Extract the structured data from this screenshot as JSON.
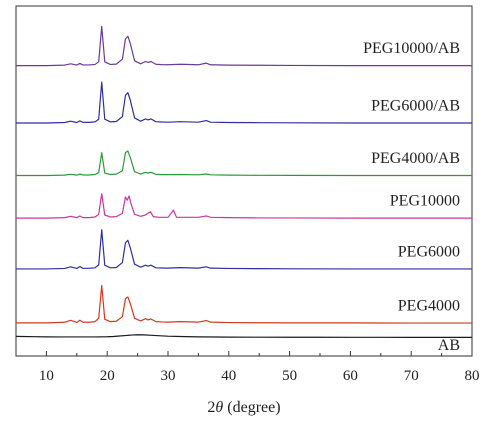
{
  "chart_data": {
    "type": "line",
    "title": "",
    "xlabel_italic": "θ",
    "xlabel_prefix": "2",
    "xlabel_suffix": " (degree)",
    "ylabel": "",
    "xlim": [
      5,
      80
    ],
    "x_ticks": [
      "10",
      "20",
      "30",
      "40",
      "50",
      "60",
      "70",
      "80"
    ],
    "grid": false,
    "legend": "inline labels at right",
    "series": [
      {
        "name": "AB",
        "color": "#1a1a1a",
        "offset": 0,
        "x": [
          5,
          6,
          8,
          10,
          12,
          14,
          16,
          18,
          20,
          21,
          22,
          23,
          24,
          25,
          26,
          27,
          28,
          30,
          32,
          35,
          38,
          40,
          45,
          50,
          55,
          60,
          70,
          80
        ],
        "y": [
          0.5,
          0.45,
          0.4,
          0.35,
          0.33,
          0.32,
          0.32,
          0.33,
          0.38,
          0.45,
          0.6,
          0.75,
          0.9,
          1.0,
          0.95,
          0.85,
          0.75,
          0.55,
          0.45,
          0.35,
          0.3,
          0.27,
          0.25,
          0.23,
          0.22,
          0.21,
          0.2,
          0.2
        ]
      },
      {
        "name": "PEG4000",
        "color": "#d03a1f",
        "offset": 4.5,
        "x": [
          5,
          10,
          13,
          14,
          15,
          15.5,
          16,
          17,
          18,
          18.6,
          19.1,
          19.6,
          20.5,
          21.5,
          22.5,
          23.0,
          23.4,
          23.8,
          24.5,
          25.5,
          26.3,
          26.7,
          27.2,
          28,
          29,
          30,
          32,
          35,
          36.3,
          37,
          40,
          45,
          50,
          60,
          70,
          80
        ],
        "y": [
          0.1,
          0.1,
          0.3,
          0.9,
          0.25,
          0.9,
          0.3,
          0.3,
          0.5,
          1.5,
          11.5,
          1.2,
          0.5,
          0.6,
          2.0,
          7.5,
          8.0,
          6.0,
          1.5,
          0.7,
          1.4,
          1.0,
          1.3,
          0.5,
          0.4,
          0.35,
          0.5,
          0.35,
          0.8,
          0.35,
          0.2,
          0.15,
          0.12,
          0.1,
          0.05,
          0.05
        ]
      },
      {
        "name": "PEG6000",
        "color": "#2f2fa0",
        "offset": 21,
        "x": [
          5,
          10,
          13,
          14,
          15,
          15.5,
          16,
          17,
          18,
          18.6,
          19.1,
          19.6,
          20.5,
          21.5,
          22.5,
          23.0,
          23.4,
          23.8,
          24.5,
          25.5,
          26.3,
          26.7,
          27.2,
          28,
          29,
          30,
          32,
          35,
          36.3,
          37,
          40,
          45,
          50,
          60,
          70,
          80
        ],
        "y": [
          0.05,
          0.05,
          0.2,
          0.7,
          0.2,
          0.8,
          0.25,
          0.25,
          0.4,
          1.3,
          12.0,
          1.2,
          0.4,
          0.5,
          2.0,
          8.0,
          8.8,
          6.5,
          1.5,
          0.6,
          1.2,
          0.9,
          1.2,
          0.4,
          0.35,
          0.3,
          0.45,
          0.3,
          0.7,
          0.3,
          0.2,
          0.15,
          0.1,
          0.05,
          0.05,
          0.05
        ]
      },
      {
        "name": "PEG10000",
        "color": "#c8379f",
        "offset": 36.5,
        "x": [
          5,
          10,
          13,
          14,
          15,
          15.5,
          16,
          17,
          18,
          18.6,
          19.1,
          19.6,
          20.5,
          21.5,
          22.5,
          23.0,
          23.3,
          23.6,
          23.9,
          24.5,
          25.5,
          26.3,
          27.1,
          27.6,
          28.5,
          30,
          30.9,
          31.4,
          32.5,
          35,
          36.3,
          37,
          40,
          45,
          50,
          60,
          70,
          80
        ],
        "y": [
          0.05,
          0.05,
          0.2,
          0.6,
          0.2,
          0.7,
          0.2,
          0.2,
          0.4,
          1.2,
          7.5,
          1.0,
          0.4,
          0.5,
          1.5,
          6.5,
          5.5,
          6.8,
          4.5,
          1.2,
          0.6,
          1.0,
          2.0,
          0.5,
          0.3,
          0.3,
          2.5,
          0.3,
          0.3,
          0.3,
          0.7,
          0.3,
          0.2,
          0.1,
          0.1,
          0.05,
          0.05,
          0.05
        ]
      },
      {
        "name": "PEG4000/AB",
        "color": "#2c9a3a",
        "offset": 49.5,
        "x": [
          5,
          10,
          13,
          14,
          15,
          15.5,
          16,
          17,
          18,
          18.6,
          19.1,
          19.6,
          20.5,
          21.5,
          22.5,
          23.0,
          23.4,
          23.8,
          24.5,
          25.5,
          26.3,
          26.7,
          27.2,
          28,
          29,
          30,
          32,
          35,
          36.3,
          37,
          40,
          45,
          50,
          60,
          70,
          80
        ],
        "y": [
          0.05,
          0.05,
          0.15,
          0.4,
          0.15,
          0.5,
          0.2,
          0.2,
          0.35,
          0.9,
          7.0,
          0.8,
          0.35,
          0.45,
          1.5,
          7.0,
          7.5,
          5.5,
          1.2,
          0.5,
          1.0,
          0.8,
          1.0,
          0.4,
          0.3,
          0.3,
          0.35,
          0.25,
          0.5,
          0.25,
          0.15,
          0.1,
          0.08,
          0.05,
          0.05,
          0.05
        ]
      },
      {
        "name": "PEG6000/AB",
        "color": "#2f2fa0",
        "offset": 65.5,
        "x": [
          5,
          10,
          13,
          14,
          15,
          15.5,
          16,
          17,
          18,
          18.6,
          19.1,
          19.6,
          20.5,
          21.5,
          22.5,
          23.0,
          23.4,
          23.8,
          24.5,
          25.5,
          26.3,
          26.7,
          27.2,
          28,
          29,
          30,
          32,
          35,
          36.3,
          37,
          40,
          45,
          50,
          60,
          70,
          80
        ],
        "y": [
          0.05,
          0.05,
          0.2,
          0.6,
          0.2,
          0.7,
          0.25,
          0.25,
          0.4,
          1.2,
          12.5,
          1.2,
          0.4,
          0.5,
          2.0,
          8.5,
          9.3,
          7.0,
          1.6,
          0.6,
          1.3,
          1.0,
          1.3,
          0.45,
          0.35,
          0.3,
          0.45,
          0.3,
          0.8,
          0.3,
          0.2,
          0.15,
          0.1,
          0.05,
          0.05,
          0.05
        ]
      },
      {
        "name": "PEG10000/AB",
        "color": "#6a3a9a",
        "offset": 83,
        "x": [
          5,
          10,
          13,
          14,
          15,
          15.5,
          16,
          17,
          18,
          18.6,
          19.1,
          19.6,
          20.5,
          21.5,
          22.5,
          23.0,
          23.4,
          23.8,
          24.5,
          25.5,
          26.3,
          26.7,
          27.2,
          28,
          29,
          30,
          32,
          35,
          36.3,
          37,
          40,
          45,
          50,
          60,
          70,
          80
        ],
        "y": [
          0.05,
          0.05,
          0.2,
          0.6,
          0.2,
          0.7,
          0.25,
          0.25,
          0.4,
          1.2,
          12.0,
          1.2,
          0.4,
          0.5,
          2.0,
          8.2,
          9.0,
          6.8,
          1.5,
          0.6,
          1.3,
          1.0,
          1.3,
          0.45,
          0.35,
          0.3,
          0.45,
          0.3,
          0.8,
          0.3,
          0.2,
          0.15,
          0.1,
          0.05,
          0.05,
          0.05
        ]
      }
    ],
    "series_labels": [
      {
        "text": "AB",
        "series": "AB"
      },
      {
        "text": "PEG4000",
        "series": "PEG4000"
      },
      {
        "text": "PEG6000",
        "series": "PEG6000"
      },
      {
        "text": "PEG10000",
        "series": "PEG10000"
      },
      {
        "text": "PEG4000/AB",
        "series": "PEG4000/AB"
      },
      {
        "text": "PEG6000/AB",
        "series": "PEG6000/AB"
      },
      {
        "text": "PEG10000/AB",
        "series": "PEG10000/AB"
      }
    ]
  }
}
